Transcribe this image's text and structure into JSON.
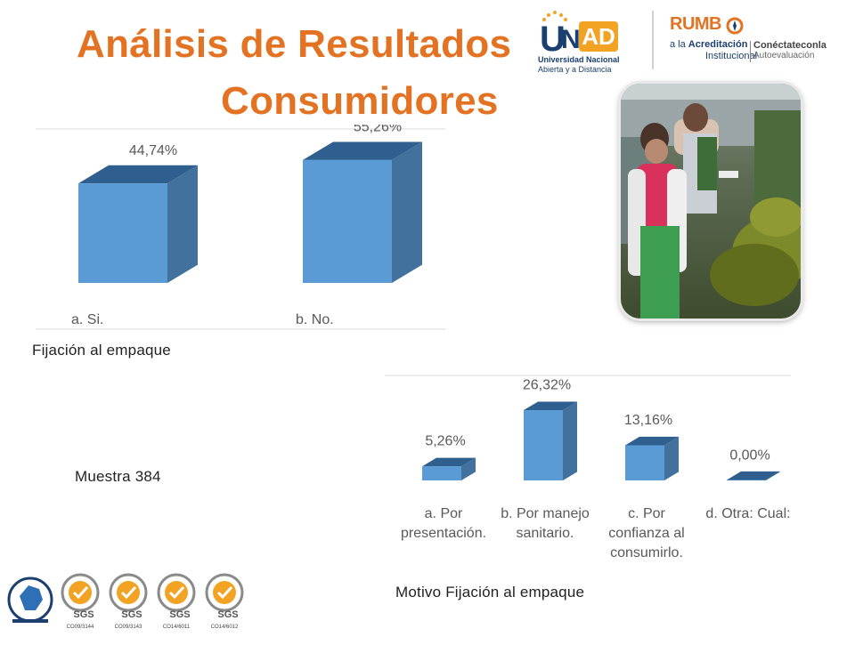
{
  "slide": {
    "title_line1": "Análisis de Resultados",
    "title_line2": "Consumidores",
    "caption_chart1": "Fijación al empaque",
    "caption_sample": "Muestra 384",
    "caption_chart2": "Motivo Fijación al empaque"
  },
  "logos": {
    "unad_u": "U",
    "unad_n": "N",
    "unad_ad": "AD",
    "unad_line1": "Universidad Nacional",
    "unad_line2": "Abierta y a Distancia",
    "rumbo_title": "RUMB",
    "rumbo_line1_prefix": "a la ",
    "rumbo_line1_bold": "Acreditación",
    "rumbo_line2": "Institucional",
    "rumbo_right1": "Conéctateconla",
    "rumbo_right2": "Autoevaluación",
    "sgs_label": "SGS",
    "cert_codes": [
      "CO09/3144",
      "CO09/3143",
      "CO14/6011",
      "CO14/6012"
    ]
  },
  "colors": {
    "title": "#E37222",
    "bar_front": "#5B9BD5",
    "bar_side": "#41719C",
    "bar_top": "#2E5F8E"
  },
  "chart_data": [
    {
      "type": "bar",
      "categories": [
        "a. Si.",
        "b. No."
      ],
      "values": [
        44.74,
        55.26
      ],
      "data_labels": [
        "44,74%",
        "55,26%"
      ],
      "ylim": [
        0,
        60
      ],
      "grid": false,
      "legend": "none"
    },
    {
      "type": "bar",
      "categories": [
        [
          "a. Por",
          "presentación."
        ],
        [
          "b. Por manejo",
          "sanitario."
        ],
        [
          "c. Por",
          "confianza al",
          "consumirlo."
        ],
        [
          "d. Otra: Cual:"
        ]
      ],
      "values": [
        5.26,
        26.32,
        13.16,
        0.0
      ],
      "data_labels": [
        "5,26%",
        "26,32%",
        "13,16%",
        "0,00%"
      ],
      "ylim": [
        0,
        30
      ],
      "grid": false,
      "legend": "none"
    }
  ]
}
